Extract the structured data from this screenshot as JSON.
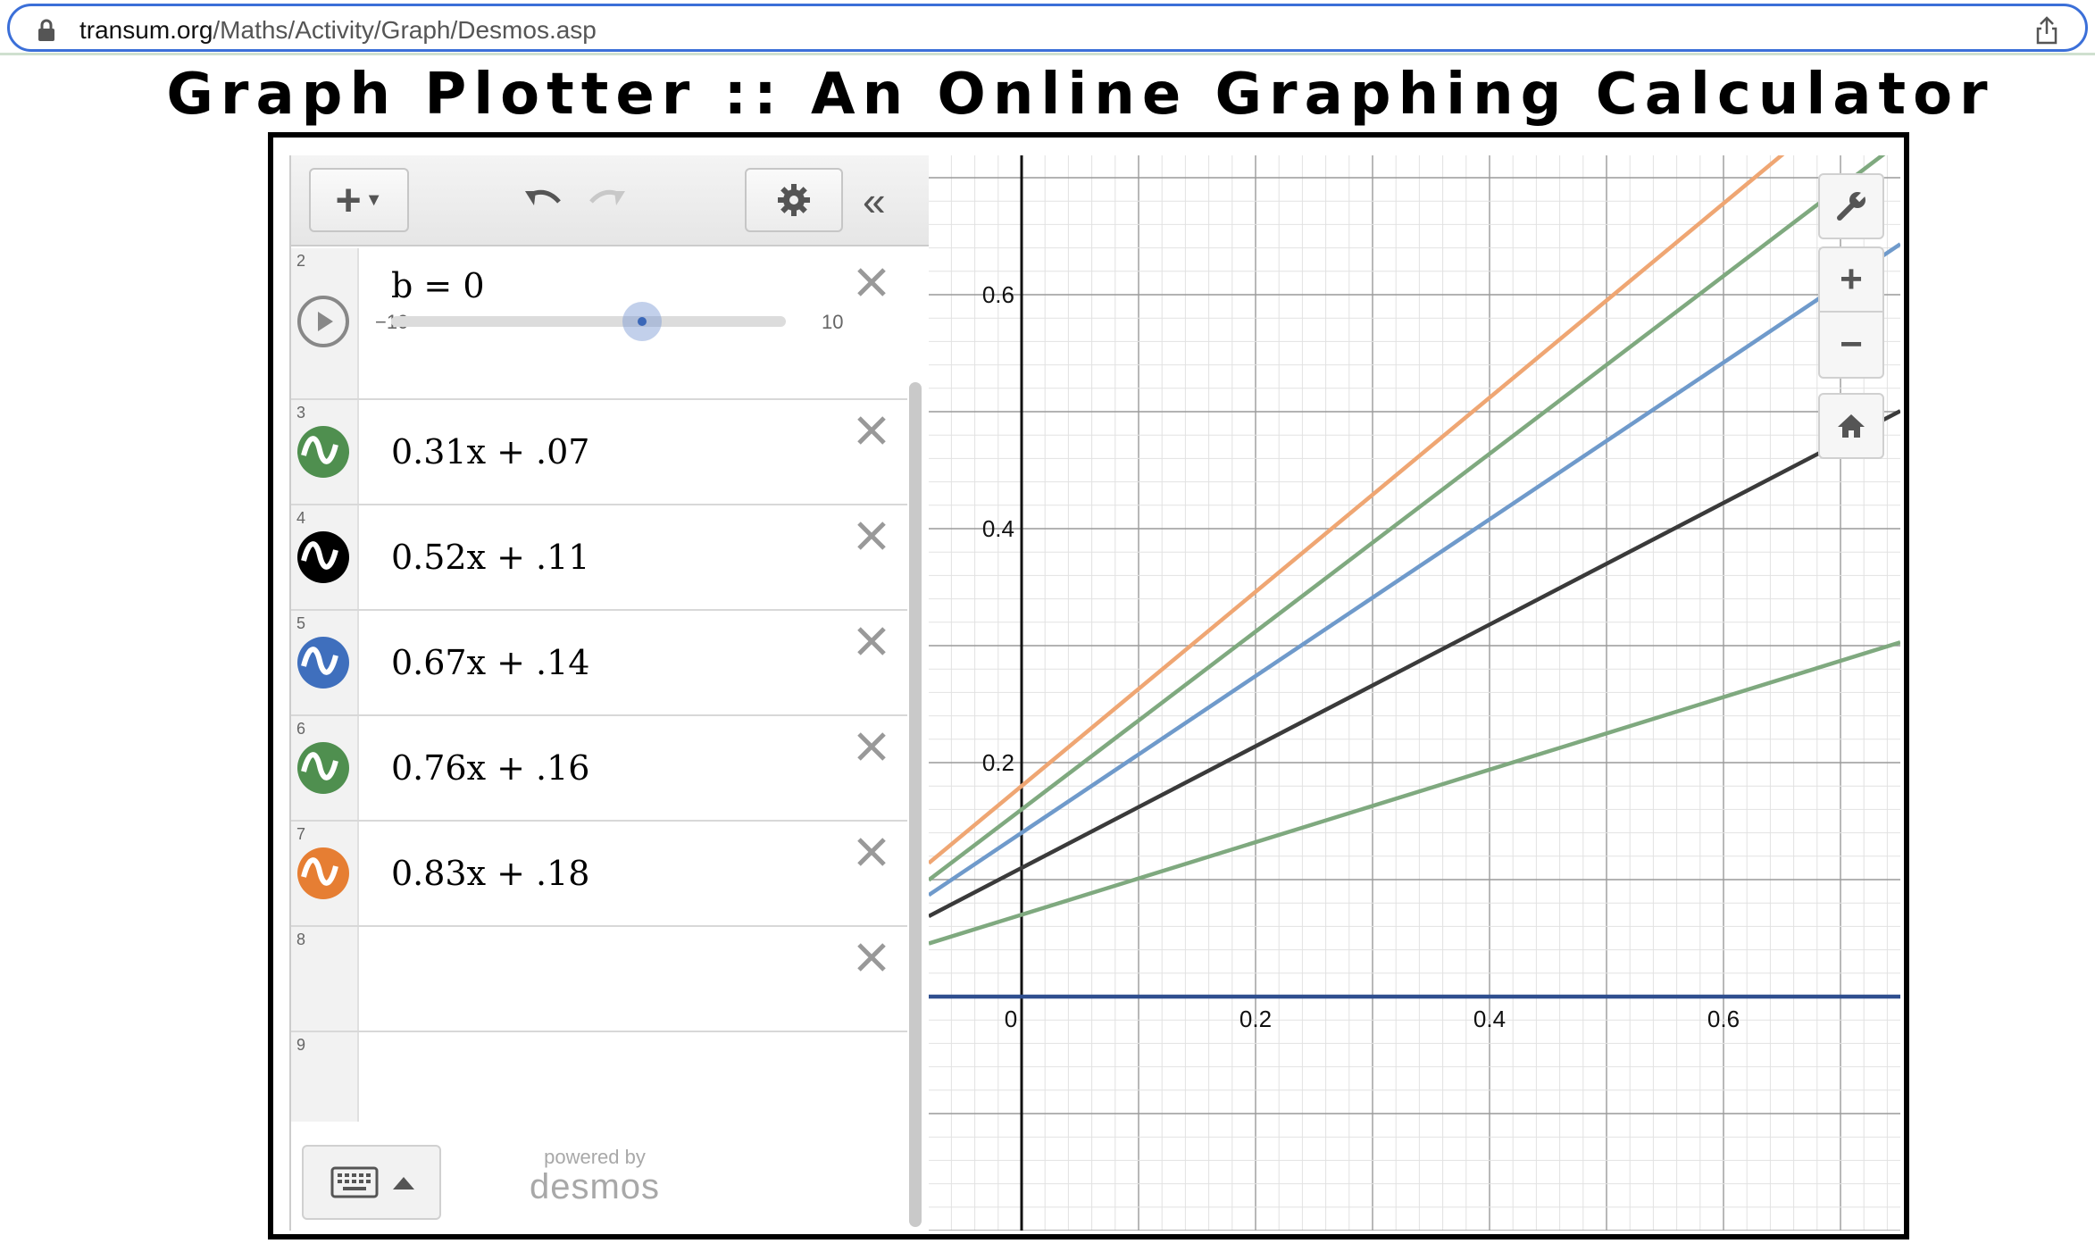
{
  "browser": {
    "url_host": "transum.org",
    "url_path": "/Maths/Activity/Graph/Desmos.asp",
    "icons": [
      "lock-icon",
      "share-icon"
    ]
  },
  "page": {
    "title": "Graph Plotter :: An Online Graphing Calculator"
  },
  "toolbar": {
    "add_label": "+",
    "icons": [
      "undo-icon",
      "redo-icon",
      "gear-icon",
      "collapse-icon"
    ]
  },
  "expressions": [
    {
      "num": "2",
      "type": "slider",
      "text": "b = 0",
      "min": "−10",
      "max": "10",
      "value": 0
    },
    {
      "num": "3",
      "text": "0.31x + .07",
      "color": "#4f8f4f"
    },
    {
      "num": "4",
      "text": "0.52x + .11",
      "color": "#000000"
    },
    {
      "num": "5",
      "text": "0.67x + .14",
      "color": "#3f6fbd"
    },
    {
      "num": "6",
      "text": "0.76x + .16",
      "color": "#4f8f4f"
    },
    {
      "num": "7",
      "text": "0.83x + .18",
      "color": "#e67e33"
    },
    {
      "num": "8",
      "text": ""
    },
    {
      "num": "9",
      "text": ""
    }
  ],
  "footer": {
    "powered_by": "powered by",
    "brand": "desmos"
  },
  "graph": {
    "x_ticks": [
      "0",
      "0.2",
      "0.4",
      "0.6"
    ],
    "y_ticks": [
      "0.6",
      "0.4",
      "0.2"
    ],
    "lines": [
      {
        "m": 0.31,
        "b": 0.07,
        "color": "#7fa97f"
      },
      {
        "m": 0.52,
        "b": 0.11,
        "color": "#3a3a3a"
      },
      {
        "m": 0.67,
        "b": 0.14,
        "color": "#6f9acb"
      },
      {
        "m": 0.76,
        "b": 0.16,
        "color": "#7fa97f"
      },
      {
        "m": 0.83,
        "b": 0.18,
        "color": "#efa673"
      },
      {
        "m": 0,
        "b": 0,
        "color": "#2f4f8f"
      }
    ]
  }
}
